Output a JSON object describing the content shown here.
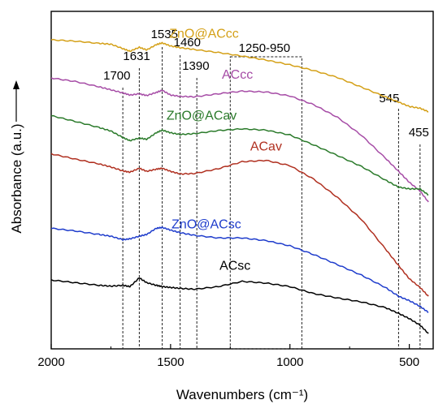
{
  "chart_data": {
    "type": "line",
    "xlabel": "Wavenumbers (cm⁻¹)",
    "ylabel": "Absorbance (a.u.)",
    "xlim": [
      2000,
      400
    ],
    "x_reversed": true,
    "y_ticks_shown": false,
    "grid": false,
    "x_ticks": [
      "2000",
      "1500",
      "1000",
      "500"
    ],
    "x_tick_values": [
      2000,
      1500,
      1000,
      500
    ],
    "reference_lines": [
      {
        "x": 1700,
        "label": "1700"
      },
      {
        "x": 1631,
        "label": "1631"
      },
      {
        "x": 1535,
        "label": "1535"
      },
      {
        "x": 1460,
        "label": "1460"
      },
      {
        "x": 1390,
        "label": "1390"
      },
      {
        "x": 545,
        "label": "545"
      },
      {
        "x": 455,
        "label": "455"
      }
    ],
    "reference_box": {
      "x_from": 1250,
      "x_to": 950,
      "label": "1250-950"
    },
    "series": [
      {
        "name": "ZnO@ACcc",
        "color": "#d4a017",
        "x": [
          2000,
          1900,
          1800,
          1750,
          1700,
          1670,
          1631,
          1600,
          1560,
          1535,
          1500,
          1460,
          1400,
          1300,
          1200,
          1100,
          1000,
          900,
          800,
          700,
          600,
          545,
          500,
          455,
          420
        ],
        "y": [
          4.3,
          4.27,
          4.22,
          4.2,
          4.1,
          4.04,
          4.13,
          4.07,
          4.19,
          4.23,
          4.16,
          4.12,
          4.08,
          4.01,
          3.93,
          3.84,
          3.73,
          3.6,
          3.44,
          3.22,
          3.0,
          2.88,
          2.78,
          2.74,
          2.66
        ]
      },
      {
        "name": "ACcc",
        "color": "#a64ca6",
        "x": [
          2000,
          1900,
          1800,
          1750,
          1700,
          1670,
          1631,
          1600,
          1560,
          1535,
          1500,
          1460,
          1400,
          1300,
          1200,
          1100,
          1000,
          900,
          800,
          700,
          600,
          545,
          500,
          455,
          420
        ],
        "y": [
          3.43,
          3.35,
          3.23,
          3.16,
          3.09,
          3.04,
          3.07,
          3.03,
          3.1,
          3.15,
          3.04,
          3.01,
          3.0,
          3.07,
          3.13,
          3.11,
          3.02,
          2.82,
          2.53,
          2.12,
          1.6,
          1.3,
          1.05,
          0.85,
          0.6
        ]
      },
      {
        "name": "ZnO@ACav",
        "color": "#2a7a2a",
        "x": [
          2000,
          1900,
          1800,
          1750,
          1700,
          1670,
          1631,
          1600,
          1560,
          1535,
          1500,
          1460,
          1400,
          1300,
          1200,
          1100,
          1000,
          900,
          800,
          700,
          600,
          545,
          500,
          455,
          420
        ],
        "y": [
          2.57,
          2.44,
          2.3,
          2.22,
          2.07,
          2.0,
          2.06,
          2.03,
          2.18,
          2.24,
          2.18,
          2.14,
          2.16,
          2.23,
          2.27,
          2.24,
          2.13,
          1.9,
          1.66,
          1.41,
          1.1,
          0.94,
          0.9,
          0.9,
          0.76
        ]
      },
      {
        "name": "ACav",
        "color": "#b03020",
        "x": [
          2000,
          1900,
          1800,
          1750,
          1700,
          1670,
          1631,
          1600,
          1560,
          1535,
          1500,
          1460,
          1400,
          1300,
          1200,
          1100,
          1000,
          900,
          800,
          700,
          600,
          545,
          500,
          455,
          420
        ],
        "y": [
          1.7,
          1.58,
          1.47,
          1.4,
          1.31,
          1.28,
          1.37,
          1.3,
          1.35,
          1.37,
          1.3,
          1.24,
          1.25,
          1.36,
          1.52,
          1.55,
          1.43,
          1.12,
          0.7,
          0.2,
          -0.47,
          -0.85,
          -1.15,
          -1.35,
          -1.55
        ]
      },
      {
        "name": "ZnO@ACsc",
        "color": "#1e3ccc",
        "x": [
          2000,
          1900,
          1800,
          1750,
          1700,
          1670,
          1631,
          1600,
          1560,
          1535,
          1500,
          1460,
          1400,
          1300,
          1200,
          1100,
          1000,
          900,
          800,
          700,
          600,
          545,
          500,
          455,
          420
        ],
        "y": [
          0.0,
          -0.06,
          -0.14,
          -0.18,
          -0.26,
          -0.24,
          -0.18,
          -0.14,
          0.0,
          0.02,
          -0.04,
          -0.1,
          -0.16,
          -0.22,
          -0.22,
          -0.28,
          -0.4,
          -0.6,
          -0.83,
          -1.07,
          -1.35,
          -1.55,
          -1.65,
          -1.78,
          -1.92
        ]
      },
      {
        "name": "ACsc",
        "color": "#000000",
        "x": [
          2000,
          1900,
          1800,
          1750,
          1700,
          1670,
          1631,
          1600,
          1560,
          1535,
          1500,
          1460,
          1400,
          1300,
          1200,
          1100,
          1000,
          900,
          800,
          700,
          600,
          545,
          500,
          455,
          420
        ],
        "y": [
          -1.18,
          -1.24,
          -1.3,
          -1.32,
          -1.3,
          -1.33,
          -1.13,
          -1.24,
          -1.3,
          -1.33,
          -1.35,
          -1.37,
          -1.39,
          -1.33,
          -1.21,
          -1.25,
          -1.33,
          -1.49,
          -1.59,
          -1.68,
          -1.81,
          -1.94,
          -2.06,
          -2.21,
          -2.4
        ]
      }
    ]
  }
}
